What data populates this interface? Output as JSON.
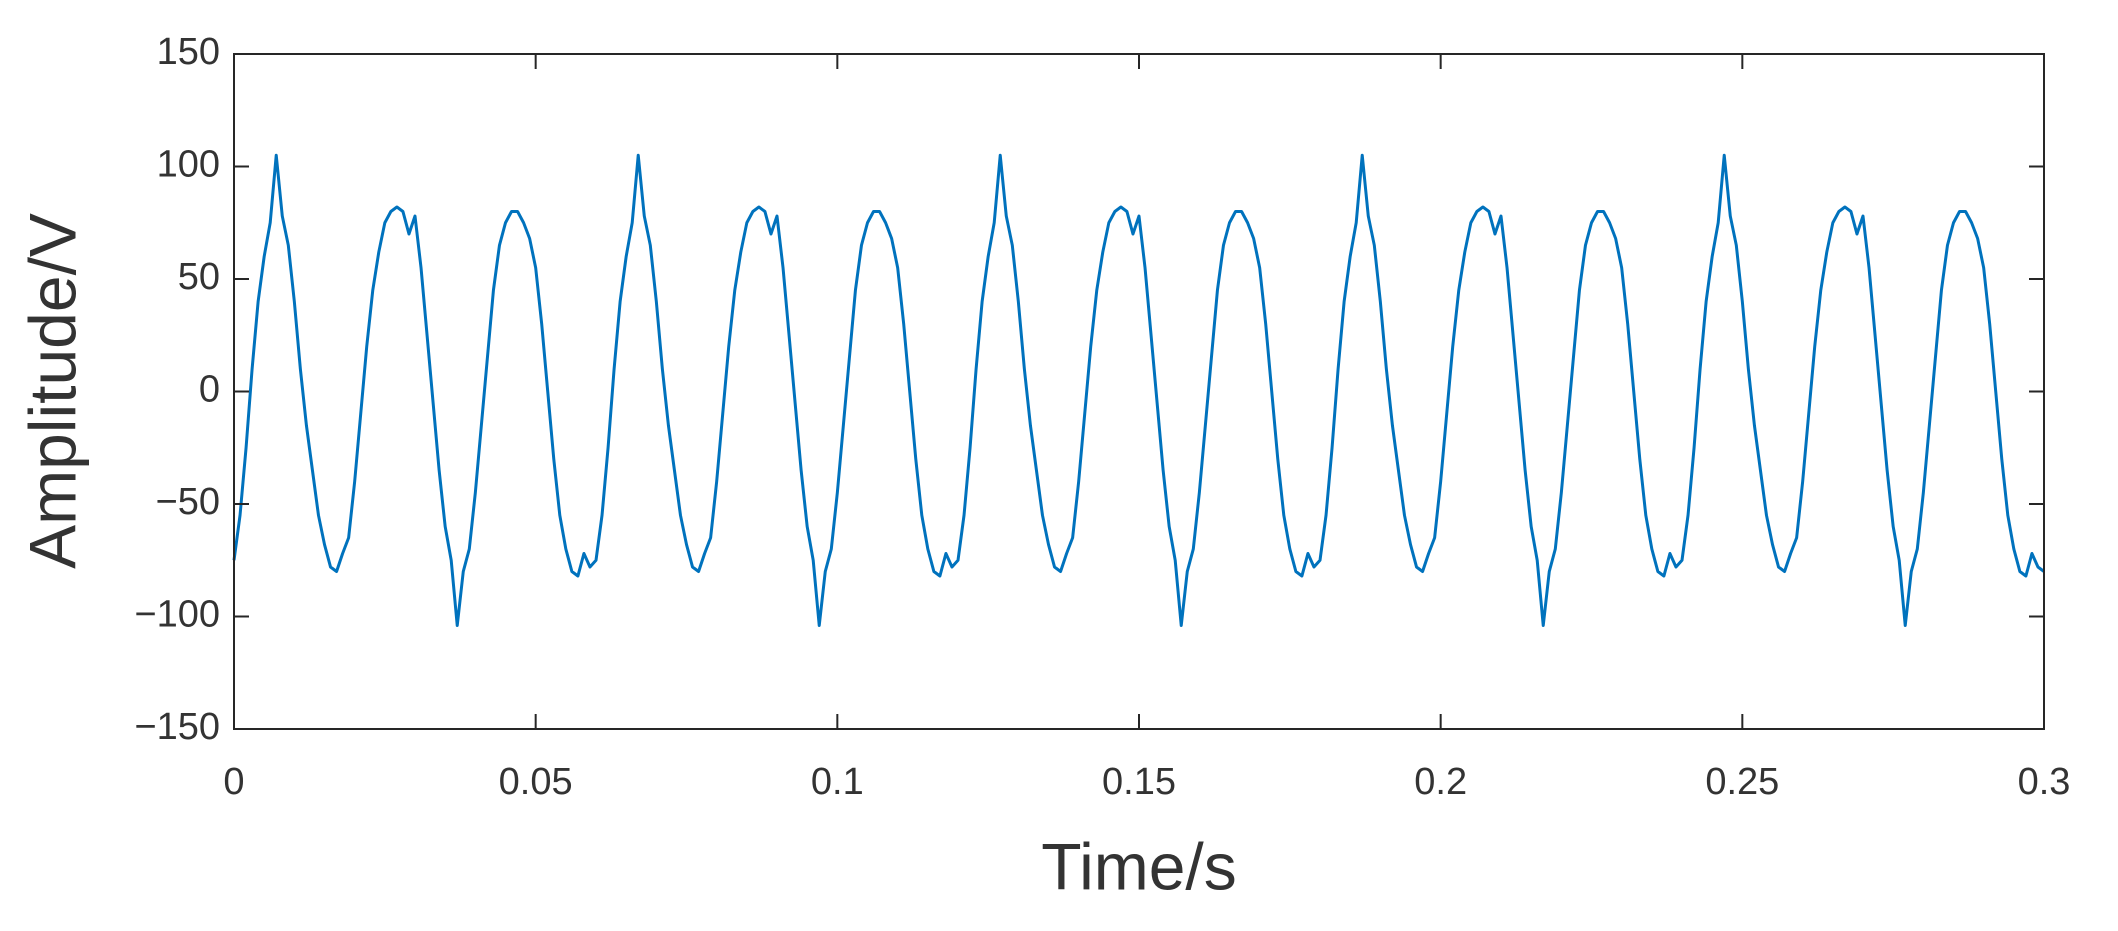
{
  "chart_data": {
    "type": "line",
    "xlabel": "Time/s",
    "ylabel": "Amplitude/V",
    "xlim": [
      0,
      0.3
    ],
    "xticks": [
      0,
      0.05,
      0.1,
      0.15,
      0.2,
      0.25,
      0.3
    ],
    "ylim": [
      -150,
      150
    ],
    "yticks": [
      {
        "value": -150,
        "label": "−150"
      },
      {
        "value": -100,
        "label": "−100"
      },
      {
        "value": -50,
        "label": "−50"
      },
      0,
      50,
      100,
      150
    ],
    "grid": false,
    "x": [
      0,
      0.001,
      0.002,
      0.003,
      0.004,
      0.005,
      0.006,
      0.007,
      0.008,
      0.009,
      0.01,
      0.011,
      0.012,
      0.013,
      0.014,
      0.015,
      0.016,
      0.017,
      0.018,
      0.019,
      0.02,
      0.021,
      0.022,
      0.023,
      0.024,
      0.025,
      0.026,
      0.027,
      0.028,
      0.029,
      0.03,
      0.031,
      0.032,
      0.033,
      0.034,
      0.035,
      0.036,
      0.037,
      0.038,
      0.039,
      0.04,
      0.041,
      0.042,
      0.043,
      0.044,
      0.045,
      0.046,
      0.047,
      0.048,
      0.049,
      0.05,
      0.051,
      0.052,
      0.053,
      0.054,
      0.055,
      0.056,
      0.057,
      0.058,
      0.059,
      0.06,
      0.061,
      0.062,
      0.063,
      0.064,
      0.065,
      0.066,
      0.067,
      0.068,
      0.069,
      0.07,
      0.071,
      0.072,
      0.073,
      0.074,
      0.075,
      0.076,
      0.077,
      0.078,
      0.079,
      0.08,
      0.081,
      0.082,
      0.083,
      0.084,
      0.085,
      0.086,
      0.087,
      0.088,
      0.089,
      0.09,
      0.091,
      0.092,
      0.093,
      0.094,
      0.095,
      0.096,
      0.097,
      0.098,
      0.099,
      0.1,
      0.101,
      0.102,
      0.103,
      0.104,
      0.105,
      0.106,
      0.107,
      0.108,
      0.109,
      0.11,
      0.111,
      0.112,
      0.113,
      0.114,
      0.115,
      0.116,
      0.117,
      0.118,
      0.119,
      0.12,
      0.121,
      0.122,
      0.123,
      0.124,
      0.125,
      0.126,
      0.127,
      0.128,
      0.129,
      0.13,
      0.131,
      0.132,
      0.133,
      0.134,
      0.135,
      0.136,
      0.137,
      0.138,
      0.139,
      0.14,
      0.141,
      0.142,
      0.143,
      0.144,
      0.145,
      0.146,
      0.147,
      0.148,
      0.149,
      0.15,
      0.151,
      0.152,
      0.153,
      0.154,
      0.155,
      0.156,
      0.157,
      0.158,
      0.159,
      0.16,
      0.161,
      0.162,
      0.163,
      0.164,
      0.165,
      0.166,
      0.167,
      0.168,
      0.169,
      0.17,
      0.171,
      0.172,
      0.173,
      0.174,
      0.175,
      0.176,
      0.177,
      0.178,
      0.179,
      0.18,
      0.181,
      0.182,
      0.183,
      0.184,
      0.185,
      0.186,
      0.187,
      0.188,
      0.189,
      0.19,
      0.191,
      0.192,
      0.193,
      0.194,
      0.195,
      0.196,
      0.197,
      0.198,
      0.199,
      0.2,
      0.201,
      0.202,
      0.203,
      0.204,
      0.205,
      0.206,
      0.207,
      0.208,
      0.209,
      0.21,
      0.211,
      0.212,
      0.213,
      0.214,
      0.215,
      0.216,
      0.217,
      0.218,
      0.219,
      0.22,
      0.221,
      0.222,
      0.223,
      0.224,
      0.225,
      0.226,
      0.227,
      0.228,
      0.229,
      0.23,
      0.231,
      0.232,
      0.233,
      0.234,
      0.235,
      0.236,
      0.237,
      0.238,
      0.239,
      0.24,
      0.241,
      0.242,
      0.243,
      0.244,
      0.245,
      0.246,
      0.247,
      0.248,
      0.249,
      0.25,
      0.251,
      0.252,
      0.253,
      0.254,
      0.255,
      0.256,
      0.257,
      0.258,
      0.259,
      0.26,
      0.261,
      0.262,
      0.263,
      0.264,
      0.265,
      0.266,
      0.267,
      0.268,
      0.269,
      0.27,
      0.271,
      0.272,
      0.273,
      0.274,
      0.275,
      0.276,
      0.277,
      0.278,
      0.279,
      0.28,
      0.281,
      0.282,
      0.283,
      0.284,
      0.285,
      0.286,
      0.287,
      0.288,
      0.289,
      0.29,
      0.291,
      0.292,
      0.293,
      0.294,
      0.295,
      0.296,
      0.297,
      0.298,
      0.299,
      0.3
    ],
    "series": [
      {
        "color": "#0072bd",
        "values": [
          -75,
          -55,
          -25,
          10,
          40,
          60,
          75,
          105,
          78,
          65,
          40,
          10,
          -15,
          -35,
          -55,
          -68,
          -78,
          -80,
          -72,
          -65,
          -40,
          -10,
          20,
          45,
          62,
          75,
          80,
          82,
          80,
          70,
          78,
          55,
          25,
          -5,
          -35,
          -60,
          -75,
          -104,
          -80,
          -70,
          -45,
          -15,
          15,
          45,
          65,
          75,
          80,
          80,
          75,
          68,
          55,
          30,
          0,
          -30,
          -55,
          -70,
          -80,
          -82,
          -72,
          -78,
          -75,
          -55,
          -25,
          10,
          40,
          60,
          75,
          105,
          78,
          65,
          40,
          10,
          -15,
          -35,
          -55,
          -68,
          -78,
          -80,
          -72,
          -65,
          -40,
          -10,
          20,
          45,
          62,
          75,
          80,
          82,
          80,
          70,
          78,
          55,
          25,
          -5,
          -35,
          -60,
          -75,
          -104,
          -80,
          -70,
          -45,
          -15,
          15,
          45,
          65,
          75,
          80,
          80,
          75,
          68,
          55,
          30,
          0,
          -30,
          -55,
          -70,
          -80,
          -82,
          -72,
          -78,
          -75,
          -55,
          -25,
          10,
          40,
          60,
          75,
          105,
          78,
          65,
          40,
          10,
          -15,
          -35,
          -55,
          -68,
          -78,
          -80,
          -72,
          -65,
          -40,
          -10,
          20,
          45,
          62,
          75,
          80,
          82,
          80,
          70,
          78,
          55,
          25,
          -5,
          -35,
          -60,
          -75,
          -104,
          -80,
          -70,
          -45,
          -15,
          15,
          45,
          65,
          75,
          80,
          80,
          75,
          68,
          55,
          30,
          0,
          -30,
          -55,
          -70,
          -80,
          -82,
          -72,
          -78,
          -75,
          -55,
          -25,
          10,
          40,
          60,
          75,
          105,
          78,
          65,
          40,
          10,
          -15,
          -35,
          -55,
          -68,
          -78,
          -80,
          -72,
          -65,
          -40,
          -10,
          20,
          45,
          62,
          75,
          80,
          82,
          80,
          70,
          78,
          55,
          25,
          -5,
          -35,
          -60,
          -75,
          -104,
          -80,
          -70,
          -45,
          -15,
          15,
          45,
          65,
          75,
          80,
          80,
          75,
          68,
          55,
          30,
          0,
          -30,
          -55,
          -70,
          -80,
          -82,
          -72,
          -78,
          -75,
          -55,
          -25,
          10,
          40,
          60,
          75,
          105,
          78,
          65,
          40,
          10,
          -15,
          -35,
          -55,
          -68,
          -78,
          -80,
          -72,
          -65,
          -40,
          -10,
          20,
          45,
          62,
          75,
          80,
          82,
          80,
          70,
          78,
          55,
          25,
          -5,
          -35,
          -60,
          -75,
          -104,
          -80,
          -70,
          -45,
          -15,
          15,
          45,
          65,
          75,
          80,
          80,
          75,
          68,
          55,
          30,
          0,
          -30,
          -55,
          -70,
          -80,
          -82,
          -72,
          -78,
          -80
        ]
      }
    ]
  }
}
